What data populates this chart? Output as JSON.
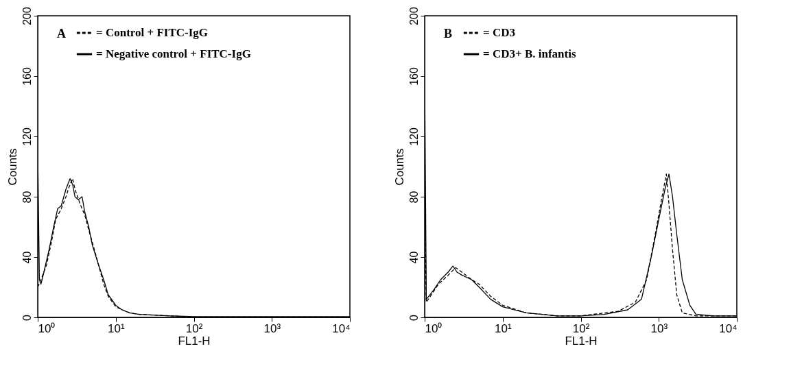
{
  "chart_data": [
    {
      "type": "line",
      "annotations": [
        "A"
      ],
      "xlabel": "FL1-H",
      "ylabel": "Counts",
      "log": "x",
      "legend": "top left",
      "grid": false,
      "xlim": [
        1,
        10000
      ],
      "xticks": [
        {
          "value": 1,
          "label": "10⁰"
        },
        {
          "value": 10,
          "label": "10¹"
        },
        {
          "value": 100,
          "label": "10²"
        },
        {
          "value": 1000,
          "label": "10³"
        },
        {
          "value": 10000,
          "label": "10⁴"
        }
      ],
      "ylim": [
        0,
        200
      ],
      "yticks": [
        0,
        40,
        80,
        120,
        160,
        200
      ],
      "series": [
        {
          "name": "= Control + FITC-IgG",
          "color": "#000000",
          "line_style": "dashed",
          "x": [
            1,
            1.1,
            1.3,
            1.5,
            1.7,
            2,
            2.3,
            2.5,
            2.8,
            3,
            3.5,
            4,
            4.5,
            5,
            6,
            7,
            8,
            10,
            15,
            20,
            50,
            100,
            10000
          ],
          "values": [
            20,
            25,
            35,
            50,
            65,
            72,
            80,
            86,
            92,
            85,
            75,
            68,
            58,
            50,
            35,
            22,
            14,
            7,
            3,
            2,
            1,
            0,
            0
          ]
        },
        {
          "name": "= Negative control + FITC-IgG",
          "color": "#000000",
          "line_style": "solid",
          "x": [
            1,
            1.05,
            1.1,
            1.2,
            1.4,
            1.6,
            1.8,
            2,
            2.3,
            2.6,
            2.8,
            3,
            3.3,
            3.7,
            4,
            4.5,
            5,
            6,
            7,
            8,
            10,
            12,
            15,
            20,
            30,
            50,
            100,
            1000,
            10000
          ],
          "values": [
            110,
            25,
            22,
            30,
            45,
            60,
            72,
            74,
            85,
            92,
            88,
            80,
            78,
            80,
            70,
            60,
            48,
            35,
            25,
            15,
            8,
            5,
            3,
            2,
            1.5,
            1,
            0.5,
            0.5,
            0.5
          ]
        }
      ]
    },
    {
      "type": "line",
      "annotations": [
        "B"
      ],
      "xlabel": "FL1-H",
      "ylabel": "Counts",
      "log": "x",
      "legend": "top left",
      "grid": false,
      "xlim": [
        1,
        10000
      ],
      "xticks": [
        {
          "value": 1,
          "label": "10⁰"
        },
        {
          "value": 10,
          "label": "10¹"
        },
        {
          "value": 100,
          "label": "10²"
        },
        {
          "value": 1000,
          "label": "10³"
        },
        {
          "value": 10000,
          "label": "10⁴"
        }
      ],
      "ylim": [
        0,
        200
      ],
      "yticks": [
        0,
        40,
        80,
        120,
        160,
        200
      ],
      "series": [
        {
          "name": "= CD3",
          "color": "#000000",
          "line_style": "dashed",
          "x": [
            1,
            1.05,
            1.5,
            2,
            2.5,
            3,
            4,
            5,
            7,
            10,
            20,
            50,
            100,
            300,
            500,
            700,
            900,
            1100,
            1250,
            1350,
            1500,
            1700,
            2000,
            3000,
            10000
          ],
          "values": [
            82,
            10,
            22,
            28,
            33,
            30,
            25,
            22,
            14,
            8,
            3,
            1,
            1,
            4,
            10,
            25,
            55,
            80,
            95,
            75,
            45,
            15,
            3,
            1,
            1
          ]
        },
        {
          "name": "= CD3+ B. infantis",
          "color": "#000000",
          "line_style": "solid",
          "x": [
            1,
            1.05,
            1.3,
            1.6,
            2,
            2.3,
            2.6,
            3,
            4,
            5,
            7,
            10,
            20,
            50,
            100,
            200,
            400,
            600,
            800,
            1000,
            1200,
            1350,
            1500,
            1700,
            2000,
            2500,
            3000,
            5000,
            10000
          ],
          "values": [
            160,
            12,
            18,
            25,
            30,
            34,
            30,
            28,
            25,
            20,
            12,
            7,
            3,
            1,
            1,
            2,
            5,
            12,
            40,
            65,
            85,
            95,
            80,
            55,
            25,
            8,
            2,
            1,
            1
          ]
        }
      ]
    }
  ]
}
